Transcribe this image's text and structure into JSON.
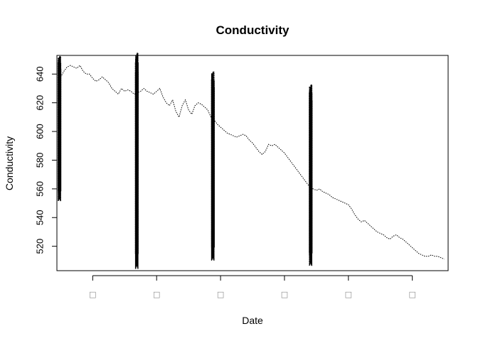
{
  "chart_data": {
    "type": "line",
    "title": "Conductivity",
    "xlabel": "Date",
    "ylabel": "Conductivity",
    "ylim": [
      503,
      653
    ],
    "yticks": [
      520,
      540,
      560,
      580,
      600,
      620,
      640
    ],
    "xlim": [
      -0.56,
      5.56
    ],
    "xticks": [
      0,
      1,
      2,
      3,
      4,
      5
    ],
    "xtick_labels": [
      "□",
      "□",
      "□",
      "□",
      "□",
      "□"
    ],
    "grid": false,
    "line_style": "dotted",
    "series": [
      {
        "x": [
          -0.52,
          -0.5,
          -0.45,
          -0.4,
          -0.35,
          -0.3,
          -0.25,
          -0.2,
          -0.15,
          -0.1,
          -0.05,
          0.0,
          0.05,
          0.1,
          0.15,
          0.2,
          0.25,
          0.3,
          0.35,
          0.4,
          0.45,
          0.5,
          0.55,
          0.6,
          0.65,
          0.7,
          0.75,
          0.8,
          0.85,
          0.9,
          0.95,
          1.0,
          1.05,
          1.1,
          1.15,
          1.2,
          1.25,
          1.3,
          1.35,
          1.4,
          1.45,
          1.5,
          1.55,
          1.6,
          1.65,
          1.7,
          1.75,
          1.8,
          1.85,
          1.9,
          1.95,
          2.0,
          2.05,
          2.1,
          2.15,
          2.2,
          2.25,
          2.3,
          2.35,
          2.4,
          2.45,
          2.5,
          2.55,
          2.6,
          2.65,
          2.7,
          2.75,
          2.8,
          2.85,
          2.9,
          2.95,
          3.0,
          3.1,
          3.2,
          3.3,
          3.4,
          3.45,
          3.5,
          3.55,
          3.6,
          3.65,
          3.7,
          3.75,
          3.8,
          3.85,
          3.9,
          3.95,
          4.0,
          4.05,
          4.1,
          4.15,
          4.2,
          4.25,
          4.3,
          4.35,
          4.4,
          4.45,
          4.5,
          4.55,
          4.6,
          4.65,
          4.7,
          4.75,
          4.8,
          4.85,
          4.9,
          4.95,
          5.0,
          5.05,
          5.1,
          5.15,
          5.2,
          5.25,
          5.3,
          5.35,
          5.4,
          5.45,
          5.5
        ],
        "y": [
          632,
          638,
          642,
          645,
          646,
          645,
          644,
          646,
          642,
          640,
          640,
          637,
          635,
          636,
          638,
          636,
          634,
          630,
          628,
          626,
          630,
          628,
          629,
          628,
          626,
          627,
          628,
          630,
          628,
          627,
          626,
          628,
          630,
          624,
          620,
          618,
          622,
          614,
          610,
          618,
          622,
          615,
          612,
          618,
          620,
          619,
          617,
          615,
          610,
          608,
          605,
          603,
          601,
          599,
          598,
          597,
          596,
          597,
          598,
          597,
          594,
          592,
          589,
          586,
          584,
          586,
          591,
          590,
          591,
          589,
          587,
          585,
          579,
          573,
          567,
          561,
          560,
          559,
          560,
          558,
          557,
          556,
          554,
          553,
          552,
          551,
          550,
          549,
          546,
          542,
          539,
          537,
          538,
          536,
          534,
          532,
          530,
          529,
          528,
          526,
          525,
          527,
          528,
          526,
          525,
          523,
          521,
          519,
          517,
          515,
          514,
          513,
          513,
          514,
          513,
          513,
          512,
          511
        ]
      }
    ],
    "spikes": [
      {
        "x": -0.52,
        "min": 556,
        "max": 648
      },
      {
        "x": 0.69,
        "min": 511,
        "max": 648
      },
      {
        "x": 1.88,
        "min": 516,
        "max": 636
      },
      {
        "x": 3.41,
        "min": 512,
        "max": 627
      }
    ]
  }
}
